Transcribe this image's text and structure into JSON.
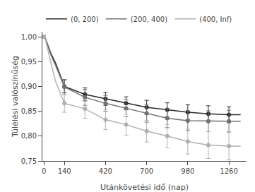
{
  "chart_data": {
    "type": "line",
    "xlabel": "Utánkövetési idő (nap)",
    "ylabel": "Túlélési valószínűség",
    "xlim": [
      -10,
      1380
    ],
    "ylim": [
      0.75,
      1.01
    ],
    "xticks": [
      0,
      140,
      420,
      700,
      980,
      1260
    ],
    "yticks": [
      {
        "value": 0.75,
        "label": "0,75"
      },
      {
        "value": 0.8,
        "label": "0,80"
      },
      {
        "value": 0.85,
        "label": "0,85"
      },
      {
        "value": 0.9,
        "label": "0,90"
      },
      {
        "value": 0.95,
        "label": "0,95"
      },
      {
        "value": 1.0,
        "label": "1,00"
      }
    ],
    "grid": false,
    "legend": "top",
    "series": [
      {
        "name": "(0, 200)",
        "color": "#2a2a2a",
        "marker": "circle",
        "x": [
          0,
          5,
          15,
          30,
          50,
          80,
          140,
          280,
          420,
          560,
          700,
          840,
          980,
          1120,
          1260,
          1340
        ],
        "values": [
          1.0,
          1.0,
          0.993,
          0.98,
          0.965,
          0.947,
          0.9,
          0.884,
          0.875,
          0.866,
          0.858,
          0.853,
          0.848,
          0.845,
          0.843,
          0.843
        ],
        "marker_x": [
          0,
          140,
          280,
          420,
          560,
          700,
          840,
          980,
          1120,
          1260
        ],
        "marker_values": [
          1.0,
          0.9,
          0.884,
          0.875,
          0.866,
          0.858,
          0.853,
          0.848,
          0.845,
          0.843
        ],
        "error_x": [
          140,
          280,
          420,
          560,
          700,
          840,
          980,
          1120,
          1260
        ],
        "error_values": [
          0.9,
          0.884,
          0.875,
          0.866,
          0.858,
          0.853,
          0.848,
          0.845,
          0.843
        ],
        "error_low": [
          0.013,
          0.013,
          0.013,
          0.013,
          0.014,
          0.014,
          0.015,
          0.016,
          0.016
        ],
        "error_high": [
          0.013,
          0.013,
          0.013,
          0.013,
          0.014,
          0.014,
          0.015,
          0.016,
          0.016
        ]
      },
      {
        "name": "(200, 400)",
        "color": "#707070",
        "marker": "circle",
        "x": [
          0,
          5,
          15,
          30,
          50,
          80,
          140,
          280,
          420,
          560,
          700,
          840,
          980,
          1120,
          1260,
          1340
        ],
        "values": [
          1.0,
          1.0,
          0.992,
          0.978,
          0.962,
          0.942,
          0.899,
          0.878,
          0.866,
          0.856,
          0.846,
          0.836,
          0.831,
          0.83,
          0.83,
          0.83
        ],
        "marker_x": [
          0,
          140,
          280,
          420,
          560,
          700,
          840,
          980,
          1120,
          1260
        ],
        "marker_values": [
          1.0,
          0.899,
          0.878,
          0.866,
          0.856,
          0.846,
          0.836,
          0.831,
          0.83,
          0.83
        ],
        "error_x": [
          140,
          280,
          420,
          560,
          700,
          840,
          980,
          1120,
          1260
        ],
        "error_values": [
          0.899,
          0.878,
          0.866,
          0.856,
          0.846,
          0.836,
          0.831,
          0.83,
          0.83
        ],
        "error_low": [
          0.015,
          0.016,
          0.016,
          0.017,
          0.018,
          0.019,
          0.02,
          0.021,
          0.022
        ],
        "error_high": [
          0.015,
          0.016,
          0.016,
          0.017,
          0.018,
          0.019,
          0.02,
          0.021,
          0.022
        ]
      },
      {
        "name": "(400, Inf)",
        "color": "#b0b0b0",
        "marker": "circle",
        "x": [
          0,
          5,
          15,
          30,
          50,
          80,
          140,
          280,
          420,
          560,
          700,
          840,
          980,
          1120,
          1260,
          1340
        ],
        "values": [
          1.0,
          0.999,
          0.99,
          0.97,
          0.945,
          0.91,
          0.866,
          0.855,
          0.833,
          0.823,
          0.81,
          0.8,
          0.789,
          0.782,
          0.78,
          0.78
        ],
        "marker_x": [
          0,
          140,
          280,
          420,
          560,
          700,
          840,
          980,
          1120,
          1260
        ],
        "marker_values": [
          1.0,
          0.866,
          0.855,
          0.833,
          0.823,
          0.81,
          0.8,
          0.789,
          0.782,
          0.78
        ],
        "error_x": [
          140,
          280,
          420,
          560,
          700,
          840,
          980,
          1120,
          1260
        ],
        "error_values": [
          0.866,
          0.855,
          0.833,
          0.823,
          0.81,
          0.8,
          0.789,
          0.782,
          0.78
        ],
        "error_low": [
          0.018,
          0.019,
          0.02,
          0.021,
          0.022,
          0.023,
          0.025,
          0.027,
          0.028
        ],
        "error_high": [
          0.018,
          0.019,
          0.02,
          0.021,
          0.022,
          0.023,
          0.025,
          0.027,
          0.028
        ]
      }
    ]
  }
}
